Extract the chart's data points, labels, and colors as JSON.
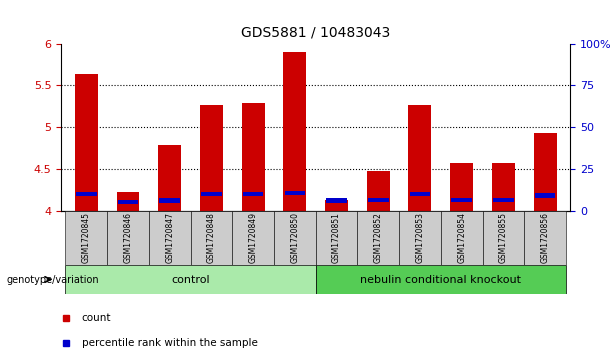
{
  "title": "GDS5881 / 10483043",
  "samples": [
    "GSM1720845",
    "GSM1720846",
    "GSM1720847",
    "GSM1720848",
    "GSM1720849",
    "GSM1720850",
    "GSM1720851",
    "GSM1720852",
    "GSM1720853",
    "GSM1720854",
    "GSM1720855",
    "GSM1720856"
  ],
  "count_values": [
    5.63,
    4.22,
    4.78,
    5.27,
    5.29,
    5.9,
    4.13,
    4.47,
    5.27,
    4.57,
    4.57,
    4.93
  ],
  "percentile_values": [
    4.2,
    4.1,
    4.12,
    4.2,
    4.2,
    4.21,
    4.12,
    4.13,
    4.2,
    4.13,
    4.13,
    4.18
  ],
  "perc_bar_height": 0.05,
  "ymin": 4.0,
  "ymax": 6.0,
  "yticks": [
    4.0,
    4.5,
    5.0,
    5.5,
    6.0
  ],
  "ytick_labels": [
    "4",
    "4.5",
    "5",
    "5.5",
    "6"
  ],
  "right_yticks": [
    0,
    25,
    50,
    75,
    100
  ],
  "right_ytick_labels": [
    "0",
    "25",
    "50",
    "75",
    "100%"
  ],
  "bar_color": "#cc0000",
  "percentile_color": "#0000cc",
  "bar_width": 0.55,
  "groups": [
    {
      "label": "control",
      "start": 0,
      "end": 5,
      "color": "#aaeaaa"
    },
    {
      "label": "nebulin conditional knockout",
      "start": 6,
      "end": 11,
      "color": "#55cc55"
    }
  ],
  "group_row_label": "genotype/variation",
  "legend_items": [
    {
      "label": "count",
      "color": "#cc0000"
    },
    {
      "label": "percentile rank within the sample",
      "color": "#0000cc"
    }
  ],
  "background_color": "#ffffff",
  "tick_label_bg": "#cccccc",
  "title_fontsize": 10,
  "axis_tick_fontsize": 8,
  "sample_fontsize": 5.5,
  "ylabel_color_left": "#cc0000",
  "ylabel_color_right": "#0000cc"
}
